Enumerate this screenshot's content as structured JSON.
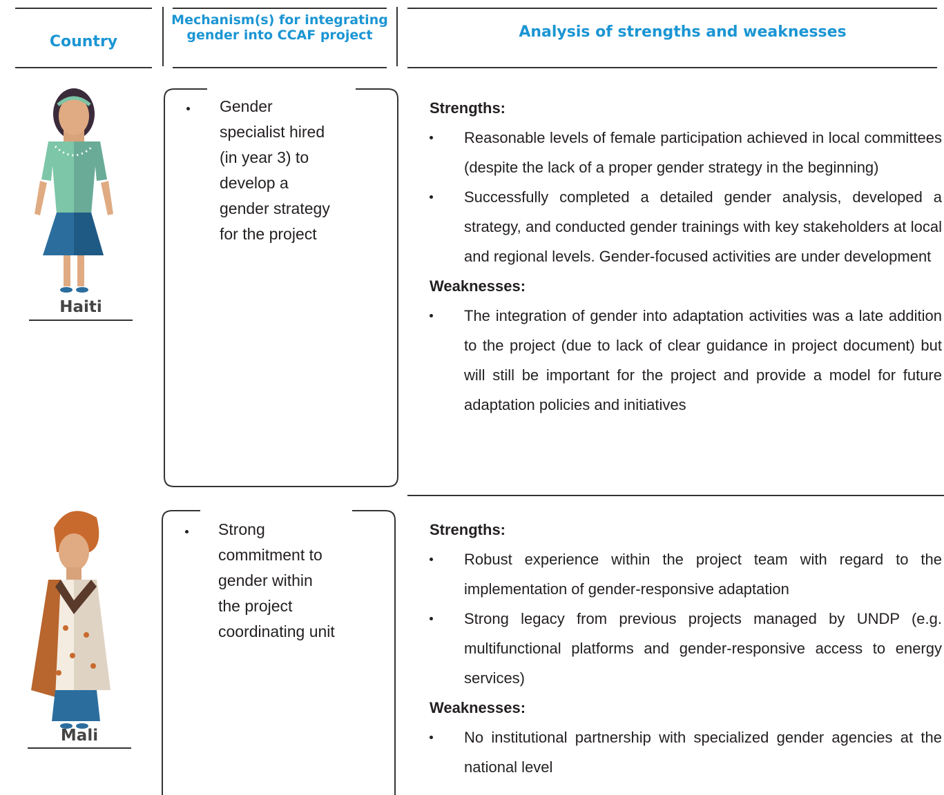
{
  "header": {
    "columns": [
      "Country",
      "Mechanism(s) for integrating gender into CCAF project",
      "Analysis of strengths and weaknesses"
    ]
  },
  "rows": [
    {
      "country": "Haiti",
      "mechanisms": [
        "Gender specialist hired (in year 3) to develop a gender strategy for the project"
      ],
      "strengths_label": "Strengths:",
      "strengths": [
        "Reasonable levels of female participation achieved in local committees (despite the lack of a proper gender strategy in the beginning)",
        "Successfully completed a detailed gender analysis, developed a strategy, and conducted gender trainings with key stakeholders at local and regional levels. Gender-focused activities are under development"
      ],
      "weaknesses_label": "Weaknesses:",
      "weaknesses": [
        "The integration of gender into adaptation activities was a late addition to the project (due to lack of clear guidance in project document) but will still be important for the project and provide a model for future adaptation policies and initiatives"
      ]
    },
    {
      "country": "Mali",
      "mechanisms": [
        "Strong commitment to gender within the project coordinating unit"
      ],
      "strengths_label": "Strengths:",
      "strengths": [
        "Robust experience within the project team with regard to the implementation of gender-responsive adaptation",
        "Strong legacy from previous projects managed by UNDP (e.g. multifunctional platforms and gender-responsive access to energy services)"
      ],
      "weaknesses_label": "Weaknesses:",
      "weaknesses": [
        "No institutional partnership with specialized gender agencies at the national level"
      ]
    }
  ]
}
